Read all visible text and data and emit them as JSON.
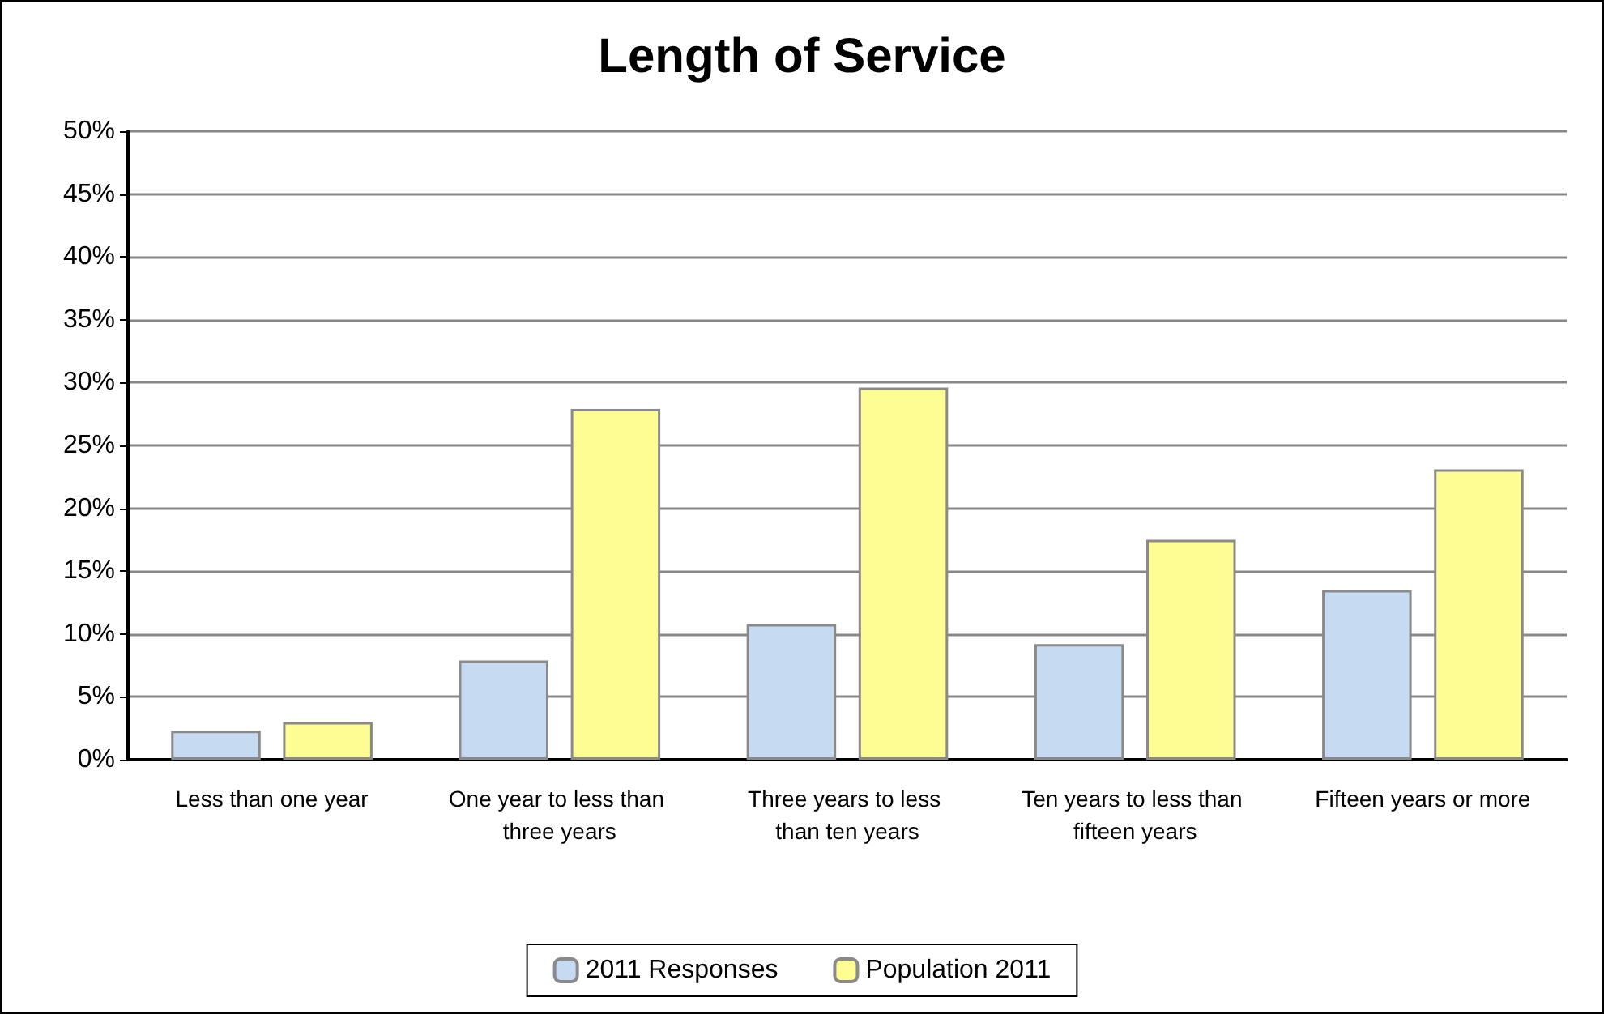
{
  "chart_data": {
    "type": "bar",
    "title": "Length of Service",
    "categories": [
      "Less than one year",
      "One year to less than three years",
      "Three years to less than ten years",
      "Ten years to less than fifteen years",
      "Fifteen years or more"
    ],
    "series": [
      {
        "name": "2011 Responses",
        "color": "#c6daf2",
        "values": [
          2.3,
          7.9,
          10.8,
          9.2,
          13.5
        ]
      },
      {
        "name": "Population 2011",
        "color": "#fdfd93",
        "values": [
          3.0,
          27.9,
          29.6,
          17.5,
          23.1
        ]
      }
    ],
    "ylim": [
      0,
      50
    ],
    "yticks": [
      {
        "value": 0,
        "label": "0%"
      },
      {
        "value": 5,
        "label": "5%"
      },
      {
        "value": 10,
        "label": "10%"
      },
      {
        "value": 15,
        "label": "15%"
      },
      {
        "value": 20,
        "label": "20%"
      },
      {
        "value": 25,
        "label": "25%"
      },
      {
        "value": 30,
        "label": "30%"
      },
      {
        "value": 35,
        "label": "35%"
      },
      {
        "value": 40,
        "label": "40%"
      },
      {
        "value": 45,
        "label": "45%"
      },
      {
        "value": 50,
        "label": "50%"
      }
    ],
    "grid": "y",
    "legend": "bottom"
  }
}
